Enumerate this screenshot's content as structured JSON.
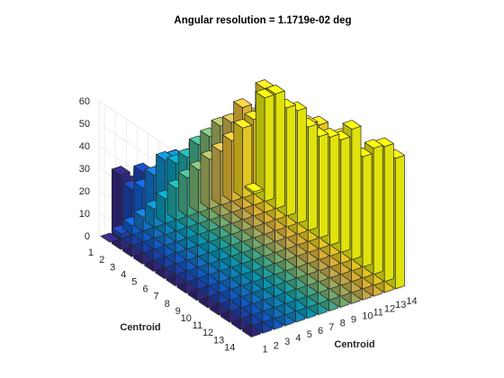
{
  "chart_data": {
    "type": "bar3",
    "title": "Angular resolution =   1.1719e-02 deg",
    "xlabel": "Centroid",
    "ylabel": "Centroid",
    "zlabel": "",
    "x_ticks": [
      "1",
      "2",
      "3",
      "4",
      "5",
      "6",
      "7",
      "8",
      "9",
      "10",
      "11",
      "12",
      "13",
      "14"
    ],
    "y_ticks": [
      "1",
      "2",
      "3",
      "4",
      "5",
      "6",
      "7",
      "8",
      "9",
      "10",
      "11",
      "12",
      "13",
      "14"
    ],
    "z_ticks": [
      "0",
      "10",
      "20",
      "30",
      "40",
      "50",
      "60"
    ],
    "zlim": [
      0,
      60
    ],
    "grid": true,
    "colormap": [
      "#352a87",
      "#0f5cdd",
      "#1481d6",
      "#06a4ca",
      "#2eb7a4",
      "#87bf77",
      "#d1bb59",
      "#fec832",
      "#f9fb0e"
    ],
    "note": "values[i][j]: bar height at first Centroid axis index i+1 (front-left axis) and second Centroid axis index j+1 (front-right axis)",
    "values": [
      [
        0,
        2,
        4,
        6,
        8,
        11,
        14,
        17,
        19,
        22,
        24,
        27,
        31,
        1
      ],
      [
        33,
        25,
        24,
        28,
        33,
        30,
        31,
        35,
        37,
        40,
        40,
        45,
        38,
        46
      ],
      [
        32,
        36,
        30,
        32,
        37,
        34,
        39,
        36,
        40,
        44,
        45,
        43,
        55,
        51
      ],
      [
        39,
        35,
        38,
        42,
        36,
        43,
        42,
        46,
        41,
        44,
        49,
        56,
        52,
        48
      ],
      [
        35,
        43,
        37,
        44,
        40,
        44,
        46,
        43,
        47,
        50,
        55,
        57,
        52,
        50
      ],
      [
        28,
        34,
        47,
        35,
        41,
        46,
        41,
        48,
        43,
        49,
        45,
        55,
        48,
        46
      ],
      [
        31,
        39,
        35,
        46,
        45,
        40,
        47,
        44,
        49,
        46,
        50,
        47,
        52,
        45
      ],
      [
        31,
        28,
        37,
        34,
        40,
        47,
        44,
        48,
        51,
        47,
        52,
        49,
        55,
        48
      ],
      [
        32,
        30,
        35,
        38,
        36,
        40,
        44,
        47,
        49,
        53,
        50,
        54,
        51,
        50
      ],
      [
        27,
        31,
        34,
        30,
        38,
        41,
        45,
        42,
        49,
        52,
        54,
        50,
        56,
        58
      ],
      [
        26,
        29,
        32,
        35,
        37,
        40,
        43,
        46,
        48,
        50,
        53,
        55,
        52,
        49
      ],
      [
        27,
        30,
        33,
        36,
        38,
        41,
        44,
        46,
        49,
        52,
        54,
        57,
        52,
        56
      ],
      [
        27,
        31,
        33,
        36,
        39,
        42,
        45,
        47,
        50,
        53,
        56,
        58,
        54,
        60
      ],
      [
        23,
        25,
        28,
        31,
        34,
        37,
        40,
        43,
        46,
        49,
        52,
        55,
        52,
        58
      ]
    ]
  }
}
